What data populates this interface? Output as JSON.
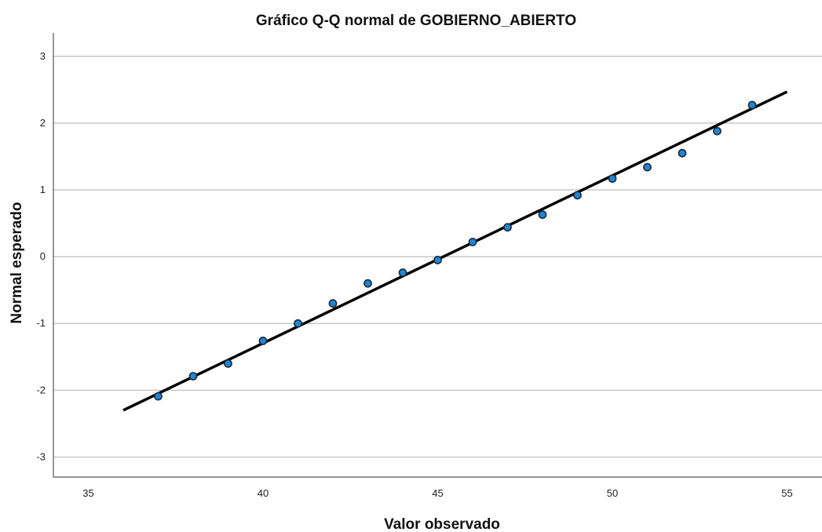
{
  "chart_data": {
    "type": "scatter",
    "title": "Gráfico Q-Q normal de GOBIERNO_ABIERTO",
    "xlabel": "Valor observado",
    "ylabel": "Normal esperado",
    "xlim": [
      34,
      56
    ],
    "ylim": [
      -3.3,
      3.35
    ],
    "xticks": [
      35,
      40,
      45,
      50,
      55
    ],
    "yticks": [
      -3,
      -2,
      -1,
      0,
      1,
      2,
      3
    ],
    "grid": "horizontal",
    "points": [
      {
        "x": 37,
        "y": -2.09
      },
      {
        "x": 38,
        "y": -1.79
      },
      {
        "x": 39,
        "y": -1.6
      },
      {
        "x": 40,
        "y": -1.26
      },
      {
        "x": 41,
        "y": -1.0
      },
      {
        "x": 42,
        "y": -0.7
      },
      {
        "x": 43,
        "y": -0.4
      },
      {
        "x": 44,
        "y": -0.24
      },
      {
        "x": 45,
        "y": -0.05
      },
      {
        "x": 46,
        "y": 0.22
      },
      {
        "x": 47,
        "y": 0.44
      },
      {
        "x": 48,
        "y": 0.63
      },
      {
        "x": 49,
        "y": 0.92
      },
      {
        "x": 50,
        "y": 1.17
      },
      {
        "x": 51,
        "y": 1.34
      },
      {
        "x": 52,
        "y": 1.55
      },
      {
        "x": 53,
        "y": 1.88
      },
      {
        "x": 54,
        "y": 2.27
      }
    ],
    "reference_line": {
      "x": [
        36,
        55
      ],
      "y": [
        -2.3,
        2.47
      ]
    },
    "colors": {
      "point_fill": "#1f86d6",
      "point_stroke": "#1b2a38",
      "line": "#000000",
      "grid": "#c8c8c8"
    }
  }
}
